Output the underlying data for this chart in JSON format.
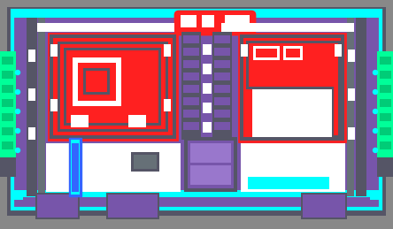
{
  "colors": {
    "cyan": "#00ffff",
    "green": "#00ff99",
    "green_dark": "#00cc77",
    "purple": "#7755aa",
    "red": "#ff2020",
    "white": "#ffffff",
    "gray": "#888888",
    "dark_gray": "#555566",
    "mid_gray": "#667077",
    "blue": "#3366ff",
    "light_purple": "#9977cc",
    "bg": "#888888"
  },
  "figsize": [
    4.44,
    2.59
  ],
  "dpi": 100
}
